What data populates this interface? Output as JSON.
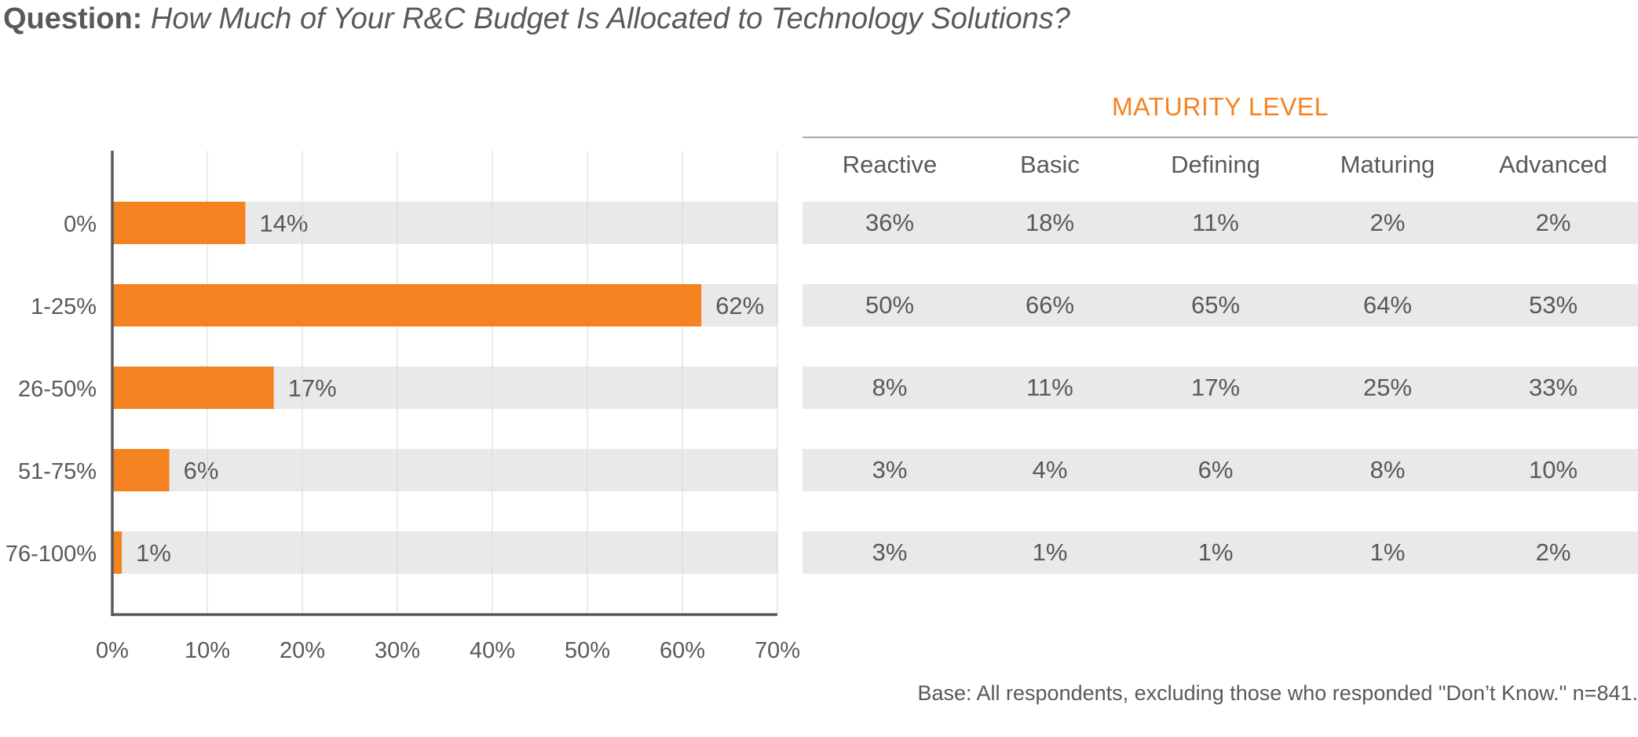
{
  "question": {
    "label": "Question:",
    "text": "How Much of Your R&C Budget Is Allocated to Technology Solutions?"
  },
  "chart_data": {
    "type": "bar",
    "orientation": "horizontal",
    "categories": [
      "0%",
      "1-25%",
      "26-50%",
      "51-75%",
      "76-100%"
    ],
    "values": [
      14,
      62,
      17,
      6,
      1
    ],
    "value_labels": [
      "14%",
      "62%",
      "17%",
      "6%",
      "1%"
    ],
    "xlim": [
      0,
      70
    ],
    "x_ticks": [
      "0%",
      "10%",
      "20%",
      "30%",
      "40%",
      "50%",
      "60%",
      "70%"
    ],
    "grid": "vertical",
    "bar_color": "#f58220",
    "band_color": "#e9e9ea",
    "grid_color": "#e6e6e6",
    "axis_color": "#58595b"
  },
  "maturity_table": {
    "title": "MATURITY LEVEL",
    "title_color": "#f58220",
    "columns": [
      "Reactive",
      "Basic",
      "Defining",
      "Maturing",
      "Advanced"
    ],
    "rows": [
      [
        "36%",
        "18%",
        "11%",
        "2%",
        "2%"
      ],
      [
        "50%",
        "66%",
        "65%",
        "64%",
        "53%"
      ],
      [
        "8%",
        "11%",
        "17%",
        "25%",
        "33%"
      ],
      [
        "3%",
        "4%",
        "6%",
        "8%",
        "10%"
      ],
      [
        "3%",
        "1%",
        "1%",
        "1%",
        "2%"
      ]
    ]
  },
  "footnote": "Base: All respondents, excluding those who responded \"Don’t Know.\" n=841."
}
